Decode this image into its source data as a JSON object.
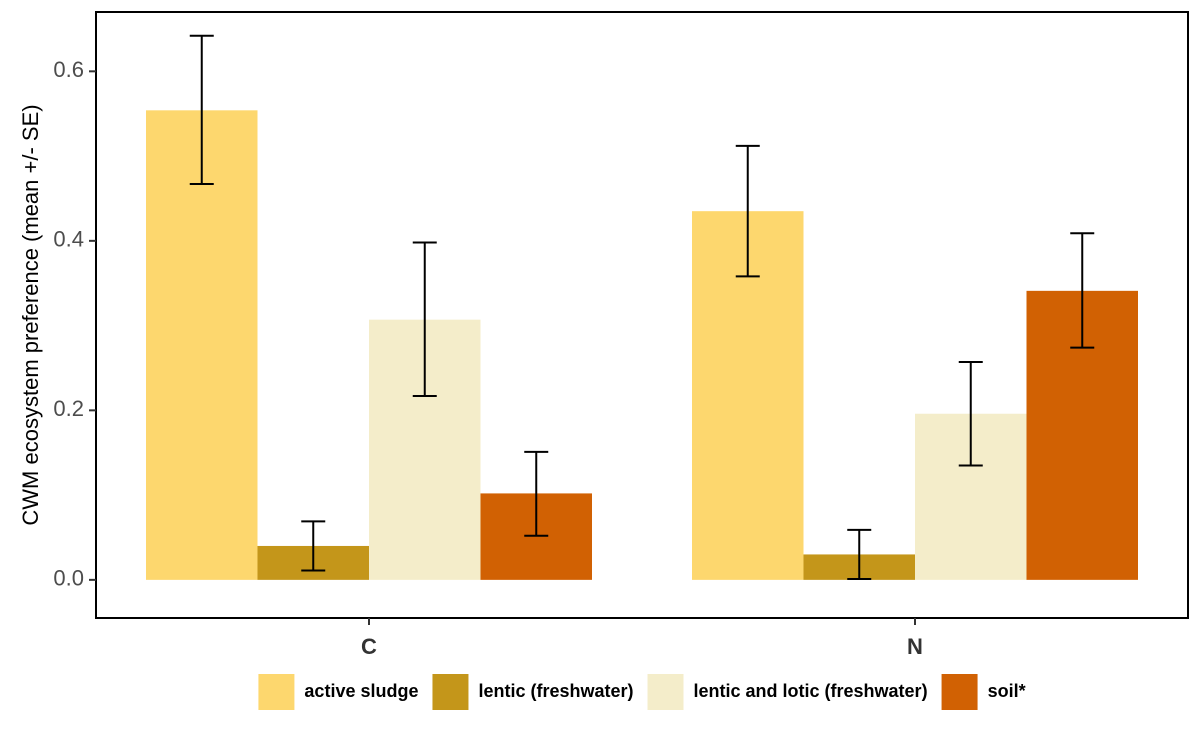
{
  "chart_data": {
    "type": "bar",
    "categories": [
      "C",
      "N"
    ],
    "ylabel": "CWM ecosystem preference  (mean +/- SE)",
    "xlabel": "",
    "ylim": [
      -0.045,
      0.67
    ],
    "yticks": [
      0.0,
      0.2,
      0.4,
      0.6
    ],
    "ytick_labels": [
      "0.0",
      "0.2",
      "0.4",
      "0.6"
    ],
    "grid": false,
    "legend_position": "bottom",
    "series": [
      {
        "name": "active sludge",
        "color": "#FDD76E",
        "values": [
          0.554,
          0.435
        ],
        "se_low": [
          0.467,
          0.358
        ],
        "se_high": [
          0.642,
          0.512
        ]
      },
      {
        "name": "lentic (freshwater)",
        "color": "#C4961A",
        "values": [
          0.04,
          0.03
        ],
        "se_low": [
          0.011,
          0.001
        ],
        "se_high": [
          0.069,
          0.059
        ]
      },
      {
        "name": "lentic and lotic (freshwater)",
        "color": "#F4EDCA",
        "values": [
          0.307,
          0.196
        ],
        "se_low": [
          0.217,
          0.135
        ],
        "se_high": [
          0.398,
          0.257
        ]
      },
      {
        "name": "soil*",
        "color": "#D16103",
        "values": [
          0.102,
          0.341
        ],
        "se_low": [
          0.052,
          0.274
        ],
        "se_high": [
          0.151,
          0.409
        ]
      }
    ]
  }
}
